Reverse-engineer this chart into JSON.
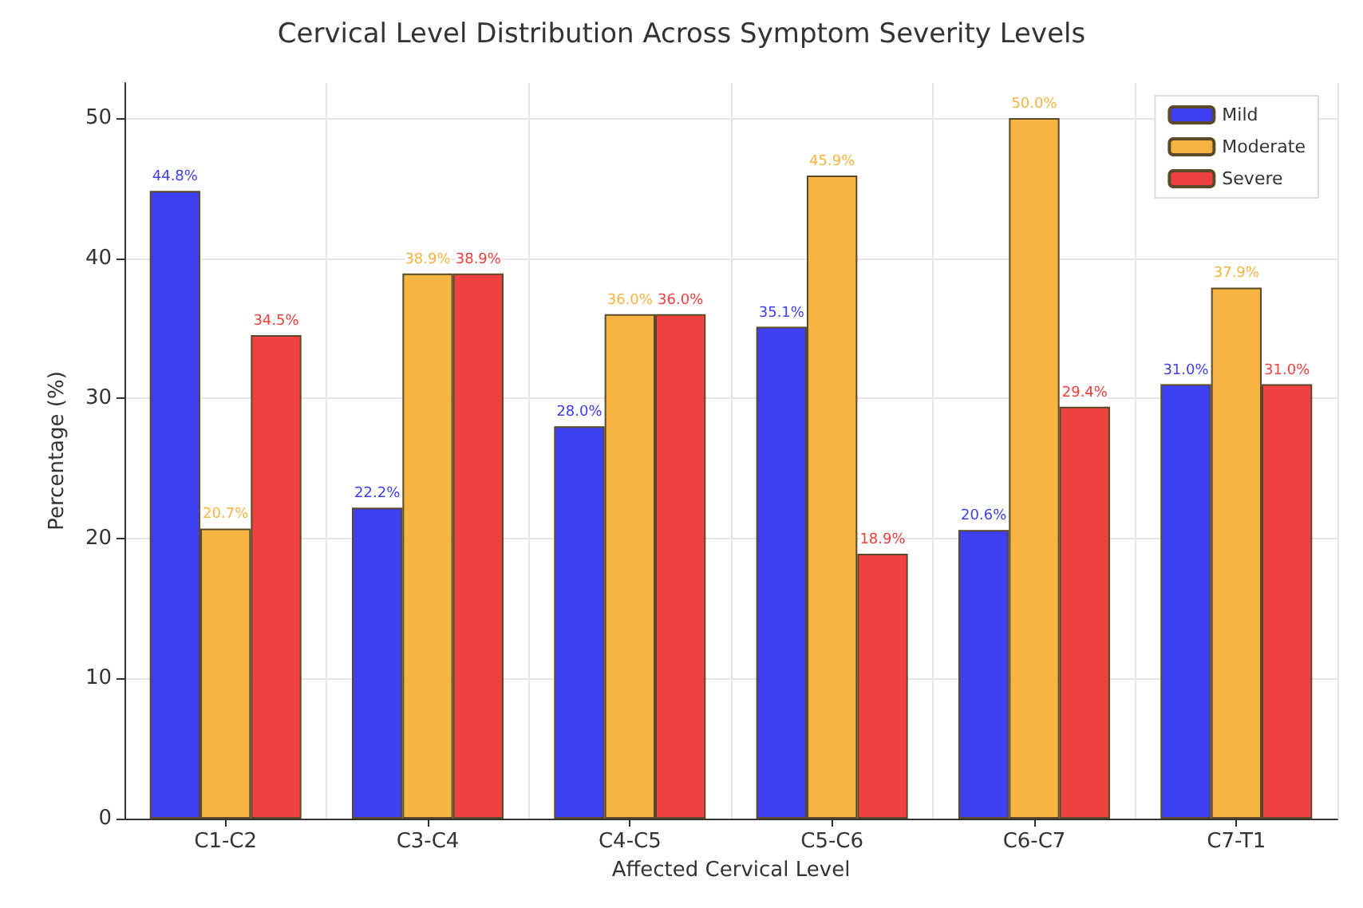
{
  "chart_data": {
    "type": "bar",
    "title": "Cervical Level Distribution Across Symptom Severity Levels",
    "xlabel": "Affected Cervical Level",
    "ylabel": "Percentage (%)",
    "categories": [
      "C1-C2",
      "C3-C4",
      "C4-C5",
      "C5-C6",
      "C6-C7",
      "C7-T1"
    ],
    "series": [
      {
        "name": "Mild",
        "color": "#3f3ff2",
        "values": [
          44.8,
          22.2,
          28.0,
          35.1,
          20.6,
          31.0
        ],
        "value_labels": [
          "44.8%",
          "22.2%",
          "28.0%",
          "35.1%",
          "20.6%",
          "31.0%"
        ]
      },
      {
        "name": "Moderate",
        "color": "#f6b441",
        "values": [
          20.7,
          38.9,
          36.0,
          45.9,
          50.0,
          37.9
        ],
        "value_labels": [
          "20.7%",
          "38.9%",
          "36.0%",
          "45.9%",
          "50.0%",
          "37.9%"
        ]
      },
      {
        "name": "Severe",
        "color": "#f0403f",
        "values": [
          34.5,
          38.9,
          36.0,
          18.9,
          29.4,
          31.0
        ],
        "value_labels": [
          "34.5%",
          "38.9%",
          "36.0%",
          "18.9%",
          "29.4%",
          "31.0%"
        ]
      }
    ],
    "ylim": [
      0,
      52.5
    ],
    "yticks": [
      0,
      10,
      20,
      30,
      40,
      50
    ],
    "grid": true,
    "legend": "top right"
  }
}
